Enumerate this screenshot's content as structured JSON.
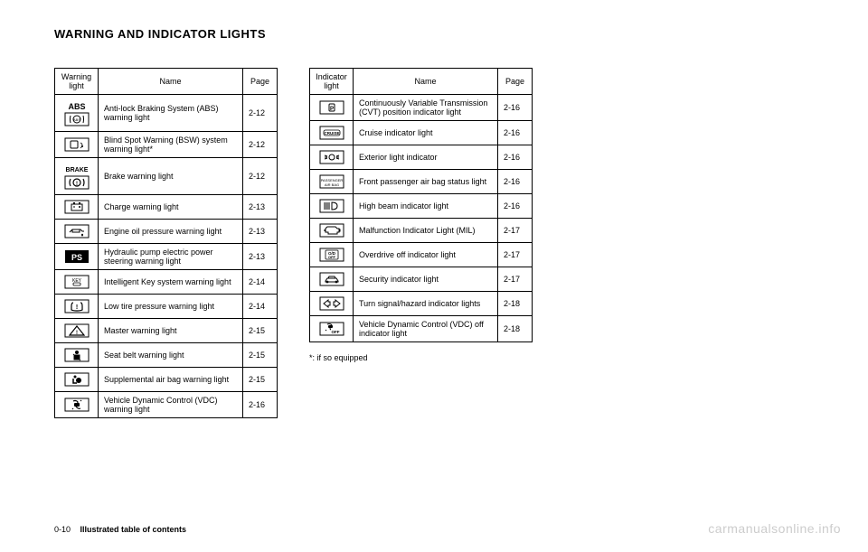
{
  "page_title": "WARNING AND INDICATOR LIGHTS",
  "warning_table": {
    "headers": {
      "light": "Warning light",
      "name": "Name",
      "page": "Page"
    },
    "rows": [
      {
        "icon": "abs",
        "name": "Anti-lock Braking System (ABS) warning light",
        "page": "2-12"
      },
      {
        "icon": "bsw",
        "name": "Blind Spot Warning (BSW) system warning light*",
        "page": "2-12"
      },
      {
        "icon": "brake",
        "name": "Brake warning light",
        "page": "2-12"
      },
      {
        "icon": "battery",
        "name": "Charge warning light",
        "page": "2-13"
      },
      {
        "icon": "oil",
        "name": "Engine oil pressure warning light",
        "page": "2-13"
      },
      {
        "icon": "ps",
        "name": "Hydraulic pump electric power steering warning light",
        "page": "2-13"
      },
      {
        "icon": "key",
        "name": "Intelligent Key system warning light",
        "page": "2-14"
      },
      {
        "icon": "tire",
        "name": "Low tire pressure warning light",
        "page": "2-14"
      },
      {
        "icon": "master",
        "name": "Master warning light",
        "page": "2-15"
      },
      {
        "icon": "seatbelt",
        "name": "Seat belt warning light",
        "page": "2-15"
      },
      {
        "icon": "airbag",
        "name": "Supplemental air bag warning light",
        "page": "2-15"
      },
      {
        "icon": "vdc",
        "name": "Vehicle Dynamic Control (VDC) warning light",
        "page": "2-16"
      }
    ]
  },
  "indicator_table": {
    "headers": {
      "light": "Indicator light",
      "name": "Name",
      "page": "Page"
    },
    "rows": [
      {
        "icon": "cvt",
        "name": "Continuously Variable Transmission (CVT) position indicator light",
        "page": "2-16"
      },
      {
        "icon": "cruise",
        "name": "Cruise indicator light",
        "page": "2-16"
      },
      {
        "icon": "extlight",
        "name": "Exterior light indicator",
        "page": "2-16"
      },
      {
        "icon": "passenger",
        "name": "Front passenger air bag status light",
        "page": "2-16"
      },
      {
        "icon": "highbeam",
        "name": "High beam indicator light",
        "page": "2-16"
      },
      {
        "icon": "mil",
        "name": "Malfunction Indicator Light (MIL)",
        "page": "2-17"
      },
      {
        "icon": "odoff",
        "name": "Overdrive off indicator light",
        "page": "2-17"
      },
      {
        "icon": "security",
        "name": "Security indicator light",
        "page": "2-17"
      },
      {
        "icon": "turn",
        "name": "Turn signal/hazard indicator lights",
        "page": "2-18"
      },
      {
        "icon": "vdcoff",
        "name": "Vehicle Dynamic Control (VDC) off indicator light",
        "page": "2-18"
      }
    ]
  },
  "footnote": "*:    if so equipped",
  "footer": {
    "page": "0-10",
    "section": "Illustrated table of contents"
  },
  "watermark": "carmanualsonline.info"
}
